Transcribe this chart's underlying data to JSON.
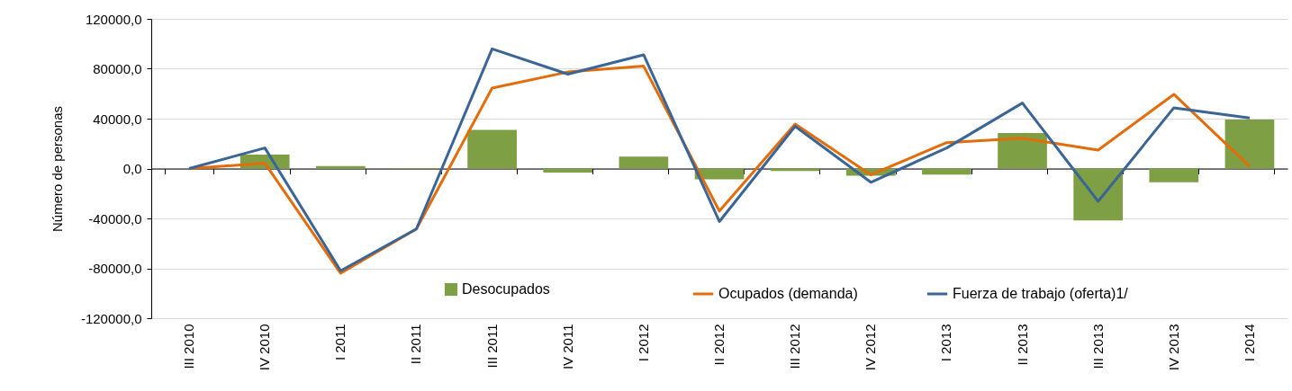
{
  "chart_data": {
    "type": "bar",
    "ylabel": "Número de personas",
    "categories": [
      "III 2010",
      "IV 2010",
      "I 2011",
      "II 2011",
      "III 2011",
      "IV 2011",
      "I 2012",
      "II 2012",
      "III 2012",
      "IV 2012",
      "I 2013",
      "II 2013",
      "III 2013",
      "IV 2013",
      "I 2014"
    ],
    "series": [
      {
        "name": "Desocupados",
        "color": "#7f9f45",
        "values": [
          0,
          11200,
          1900,
          300,
          31000,
          -3300,
          9500,
          -8600,
          -1900,
          -5700,
          -4800,
          28400,
          -41600,
          -11000,
          39200
        ]
      },
      {
        "name": "Ocupados (demanda)",
        "type": "line",
        "color": "#e46c0a",
        "values": [
          0,
          4300,
          -84000,
          -48500,
          64500,
          77400,
          82100,
          -34100,
          35600,
          -5000,
          20800,
          24400,
          14800,
          59500,
          1700
        ]
      },
      {
        "name": "Fuerza de trabajo (oferta)1/",
        "type": "line",
        "color": "#3a6597",
        "values": [
          0,
          16500,
          -82000,
          -48500,
          96000,
          75700,
          91200,
          -42500,
          33900,
          -11000,
          16500,
          52500,
          -26300,
          48700,
          40600
        ]
      }
    ],
    "ylim": [
      -120000,
      120000
    ],
    "yticks": [
      {
        "value": -120000,
        "label": "-120000,0"
      },
      {
        "value": -80000,
        "label": "-80000,0"
      },
      {
        "value": -40000,
        "label": "-40000,0"
      },
      {
        "value": 0,
        "label": "0,0"
      },
      {
        "value": 40000,
        "label": "40000,0"
      },
      {
        "value": 80000,
        "label": "80000,0"
      },
      {
        "value": 120000,
        "label": "120000,0"
      }
    ],
    "grid": "y",
    "legend": "bottom",
    "marker": "none",
    "line_style": "solid"
  }
}
